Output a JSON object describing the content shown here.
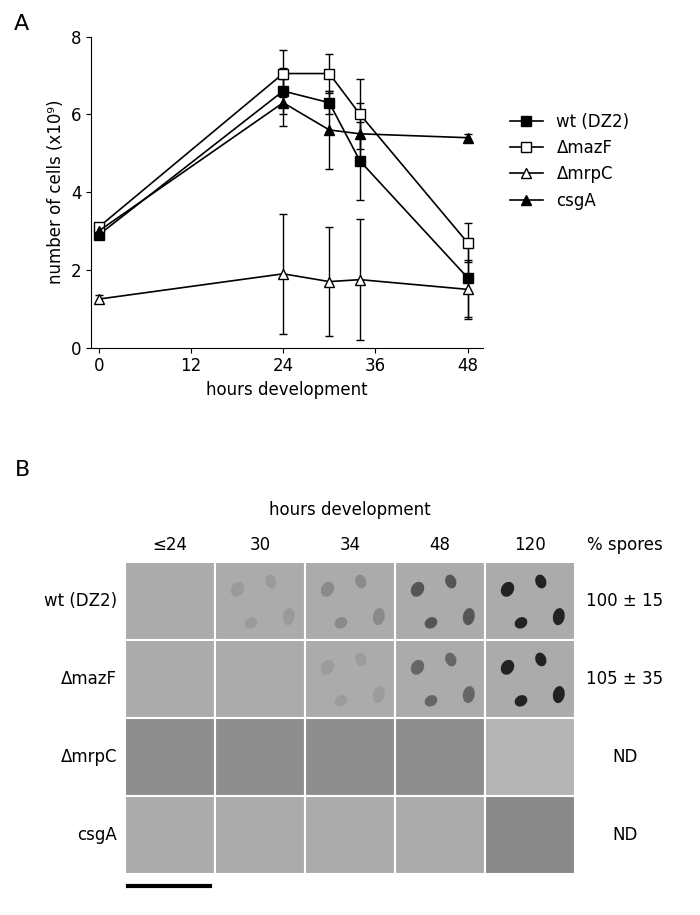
{
  "chart_data": {
    "type": "line",
    "title": "A",
    "x_label": "hours development",
    "y_label": "number of cells (x10⁹)",
    "x": [
      0,
      24,
      30,
      34,
      48
    ],
    "xlim": [
      -1,
      50
    ],
    "xticks": [
      0,
      12,
      24,
      36,
      48
    ],
    "ylim": [
      0,
      8
    ],
    "yticks": [
      0,
      2,
      4,
      6,
      8
    ],
    "legend": "center left",
    "grid": false,
    "series": [
      {
        "name": "wt (DZ2)",
        "color": "#000000",
        "marker": "filled_square",
        "values": [
          2.9,
          6.6,
          6.3,
          4.8,
          1.8
        ],
        "errors": [
          0.1,
          0.6,
          0.3,
          1.0,
          1.0
        ]
      },
      {
        "name": "ΔmazF",
        "color": "#000000",
        "marker": "open_square",
        "values": [
          3.1,
          7.05,
          7.05,
          6.0,
          2.7
        ],
        "errors": [
          0.1,
          0.6,
          0.5,
          0.9,
          0.5
        ]
      },
      {
        "name": "ΔmrpC",
        "color": "#000000",
        "marker": "open_triangle",
        "values": [
          1.25,
          1.9,
          1.7,
          1.75,
          1.5
        ],
        "errors": [
          0.1,
          1.55,
          1.4,
          1.55,
          0.75
        ]
      },
      {
        "name": "csgA",
        "color": "#000000",
        "marker": "filled_triangle",
        "values": [
          3.0,
          6.3,
          5.6,
          5.5,
          5.4
        ],
        "errors": [
          0.1,
          0.6,
          1.0,
          0.8,
          0.1
        ]
      }
    ]
  },
  "image_grid": {
    "title": "B",
    "column_header": "hours development",
    "columns": [
      "≤24",
      "30",
      "34",
      "48",
      "120"
    ],
    "values_header": "% spores",
    "rows": [
      "wt (DZ2)",
      "ΔmazF",
      "ΔmrpC",
      "csgA"
    ],
    "values": [
      "100 ± 15",
      "105 ± 35",
      "ND",
      "ND"
    ]
  }
}
